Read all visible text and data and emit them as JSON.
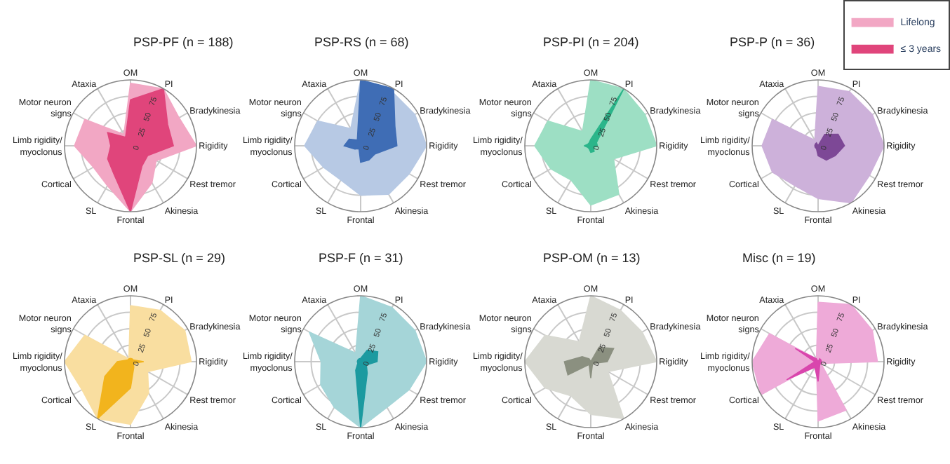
{
  "chart_data": [
    {
      "type": "radar",
      "title": "PSP-PF (n = 188)",
      "categories": [
        "OM",
        "PI",
        "Bradykinesia",
        "Rigidity",
        "Rest tremor",
        "Akinesia",
        "Frontal",
        "SL",
        "Cortical",
        "Limb rigidity/\nmyoclonus",
        "Motor neuron\nsigns",
        "Ataxia"
      ],
      "ylim": [
        0,
        100
      ],
      "yticks": [
        0,
        25,
        50,
        75
      ],
      "grid": true,
      "legend": "top right",
      "marker": "none",
      "series": [
        {
          "name": "Lifelong",
          "color": "#f2a7c4",
          "values": [
            95,
            100,
            85,
            100,
            45,
            65,
            100,
            70,
            65,
            85,
            80,
            20
          ]
        },
        {
          "name": "≤ 3 years",
          "color": "#e0457b",
          "values": [
            70,
            100,
            65,
            65,
            30,
            35,
            100,
            50,
            40,
            30,
            40,
            15
          ]
        }
      ]
    },
    {
      "type": "radar",
      "title": "PSP-RS (n = 68)",
      "categories": [
        "OM",
        "PI",
        "Bradykinesia",
        "Rigidity",
        "Rest tremor",
        "Akinesia",
        "Frontal",
        "SL",
        "Cortical",
        "Limb rigidity/\nmyoclonus",
        "Motor neuron\nsigns",
        "Ataxia"
      ],
      "ylim": [
        0,
        100
      ],
      "yticks": [
        0,
        25,
        50,
        75
      ],
      "grid": true,
      "marker": "none",
      "series": [
        {
          "color": "#b7c9e4",
          "values": [
            100,
            95,
            95,
            100,
            85,
            85,
            75,
            60,
            65,
            85,
            75,
            30
          ]
        },
        {
          "color": "#3f6db5",
          "values": [
            100,
            100,
            60,
            55,
            25,
            25,
            25,
            5,
            10,
            25,
            20,
            10
          ]
        }
      ]
    },
    {
      "type": "radar",
      "title": "PSP-PI (n = 204)",
      "categories": [
        "OM",
        "PI",
        "Bradykinesia",
        "Rigidity",
        "Rest tremor",
        "Akinesia",
        "Frontal",
        "SL",
        "Cortical",
        "Limb rigidity/\nmyoclonus",
        "Motor neuron\nsigns",
        "Ataxia"
      ],
      "ylim": [
        0,
        100
      ],
      "yticks": [
        0,
        25,
        50,
        75
      ],
      "grid": true,
      "marker": "none",
      "series": [
        {
          "color": "#9ddfc4",
          "values": [
            100,
            100,
            95,
            100,
            40,
            85,
            90,
            60,
            70,
            85,
            75,
            25
          ]
        },
        {
          "color": "#2bb58a",
          "values": [
            10,
            100,
            10,
            10,
            5,
            10,
            10,
            5,
            5,
            10,
            5,
            5
          ]
        }
      ]
    },
    {
      "type": "radar",
      "title": "PSP-P (n = 36)",
      "categories": [
        "OM",
        "PI",
        "Bradykinesia",
        "Rigidity",
        "Rest tremor",
        "Akinesia",
        "Frontal",
        "SL",
        "Cortical",
        "Limb rigidity/\nmyoclonus",
        "Motor neuron\nsigns",
        "Ataxia"
      ],
      "ylim": [
        0,
        100
      ],
      "yticks": [
        0,
        25,
        50,
        75
      ],
      "grid": true,
      "marker": "none",
      "series": [
        {
          "color": "#cdb1da",
          "values": [
            90,
            95,
            95,
            100,
            90,
            100,
            80,
            70,
            80,
            85,
            80,
            10
          ]
        },
        {
          "color": "#7d4896",
          "values": [
            0,
            20,
            35,
            40,
            30,
            25,
            15,
            5,
            5,
            5,
            5,
            5
          ]
        }
      ]
    },
    {
      "type": "radar",
      "title": "PSP-SL (n = 29)",
      "categories": [
        "OM",
        "PI",
        "Bradykinesia",
        "Rigidity",
        "Rest tremor",
        "Akinesia",
        "Frontal",
        "SL",
        "Cortical",
        "Limb rigidity/\nmyoclonus",
        "Motor neuron\nsigns",
        "Ataxia"
      ],
      "ylim": [
        0,
        100
      ],
      "yticks": [
        0,
        25,
        50,
        75
      ],
      "grid": true,
      "marker": "none",
      "series": [
        {
          "color": "#f9dea0",
          "values": [
            85,
            90,
            95,
            92,
            30,
            55,
            95,
            100,
            85,
            100,
            80,
            5
          ]
        },
        {
          "color": "#f2b41d",
          "values": [
            5,
            5,
            5,
            20,
            5,
            10,
            40,
            100,
            45,
            20,
            5,
            5
          ]
        }
      ]
    },
    {
      "type": "radar",
      "title": "PSP-F (n = 31)",
      "categories": [
        "OM",
        "PI",
        "Bradykinesia",
        "Rigidity",
        "Rest tremor",
        "Akinesia",
        "Frontal",
        "SL",
        "Cortical",
        "Limb rigidity/\nmyoclonus",
        "Motor neuron\nsigns",
        "Ataxia"
      ],
      "ylim": [
        0,
        100
      ],
      "yticks": [
        0,
        25,
        50,
        75
      ],
      "grid": true,
      "marker": "none",
      "series": [
        {
          "color": "#a5d5d8",
          "values": [
            100,
            95,
            95,
            100,
            85,
            80,
            100,
            80,
            70,
            60,
            90,
            15
          ]
        },
        {
          "color": "#1c9aa0",
          "values": [
            5,
            20,
            30,
            25,
            10,
            20,
            100,
            15,
            5,
            5,
            5,
            5
          ]
        }
      ]
    },
    {
      "type": "radar",
      "title": "PSP-OM (n = 13)",
      "categories": [
        "OM",
        "PI",
        "Bradykinesia",
        "Rigidity",
        "Rest tremor",
        "Akinesia",
        "Frontal",
        "SL",
        "Cortical",
        "Limb rigidity/\nmyoclonus",
        "Motor neuron\nsigns",
        "Ataxia"
      ],
      "ylim": [
        0,
        100
      ],
      "yticks": [
        0,
        25,
        50,
        75
      ],
      "grid": true,
      "marker": "none",
      "series": [
        {
          "color": "#d8d9d2",
          "values": [
            100,
            90,
            90,
            100,
            30,
            100,
            80,
            60,
            80,
            100,
            80,
            35
          ]
        },
        {
          "color": "#8b9080",
          "values": [
            0,
            25,
            40,
            25,
            5,
            5,
            25,
            5,
            40,
            40,
            15,
            5
          ]
        }
      ]
    },
    {
      "type": "radar",
      "title": "Misc (n = 19)",
      "categories": [
        "OM",
        "PI",
        "Bradykinesia",
        "Rigidity",
        "Rest tremor",
        "Akinesia",
        "Frontal",
        "SL",
        "Cortical",
        "Limb rigidity/\nmyoclonus",
        "Motor neuron\nsigns",
        "Ataxia"
      ],
      "ylim": [
        0,
        100
      ],
      "yticks": [
        0,
        25,
        50,
        75
      ],
      "grid": true,
      "marker": "none",
      "series": [
        {
          "color": "#eeaad8",
          "values": [
            90,
            100,
            95,
            90,
            5,
            85,
            90,
            5,
            100,
            100,
            85,
            5
          ]
        },
        {
          "color": "#d946ad",
          "values": [
            0,
            5,
            5,
            5,
            5,
            5,
            30,
            10,
            55,
            5,
            40,
            5
          ]
        }
      ]
    }
  ]
}
